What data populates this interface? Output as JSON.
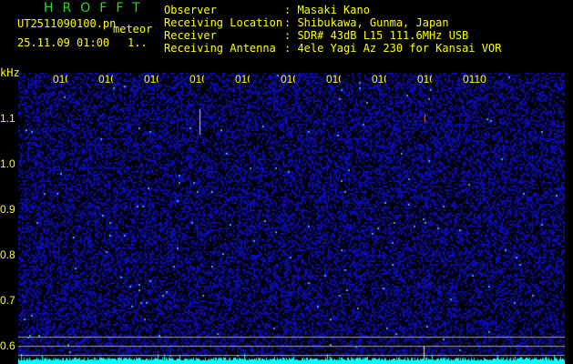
{
  "header": {
    "title": "HROFFT",
    "filename": "UT2511090100.pn",
    "mode": "meteor",
    "datetime": "25.11.09 01:00",
    "counter": "1..",
    "info": [
      {
        "label": "Observer",
        "value": "Masaki Kano"
      },
      {
        "label": "Receiving Location",
        "value": "Shibukawa, Gunma, Japan"
      },
      {
        "label": "Receiver",
        "value": "SDR# 43dB L15 111.6MHz USB"
      },
      {
        "label": "Receiving Antenna",
        "value": "4ele Yagi Az 230 for Kansai VOR"
      }
    ]
  },
  "axes": {
    "y_unit": "kHz",
    "y_ticks": [
      "1.1",
      "1.0",
      "0.9",
      "0.8",
      "0.7",
      "0.6"
    ],
    "x_ticks": [
      "0101",
      "0102",
      "0103",
      "0104",
      "0105",
      "0106",
      "0107",
      "0108",
      "0109",
      "0110"
    ]
  },
  "colors": {
    "background": "#000000",
    "noise": "#1a1aa0",
    "profile": "#00ffff",
    "text": "#ffff00",
    "title": "#22dd22"
  }
}
